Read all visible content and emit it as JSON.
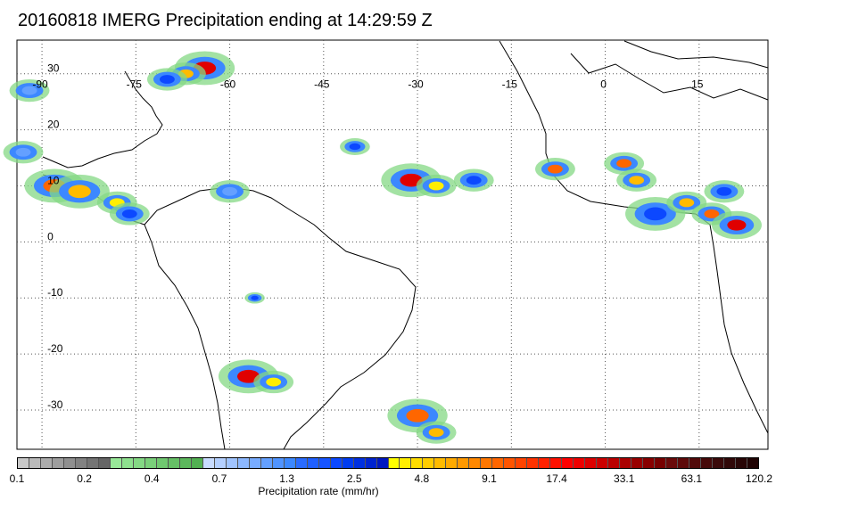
{
  "title": "20160818 IMERG Precipitation ending at 14:29:59 Z",
  "map": {
    "lon_labels": [
      "-90",
      "-75",
      "-60",
      "-45",
      "-30",
      "-15",
      "0",
      "15"
    ],
    "lon_values": [
      -90,
      -75,
      -60,
      -45,
      -30,
      -15,
      0,
      15
    ],
    "lat_labels": [
      "30",
      "20",
      "10",
      "0",
      "-10",
      "-20",
      "-30"
    ],
    "lat_values": [
      30,
      20,
      10,
      0,
      -10,
      -20,
      -30
    ],
    "lon_range": [
      -94,
      26
    ],
    "lat_range": [
      -37,
      36
    ],
    "grid": "dotted",
    "precip_cells": [
      {
        "lon": -64,
        "lat": 31,
        "value": 33.1,
        "radius": 3
      },
      {
        "lon": -67,
        "lat": 30,
        "value": 9.1,
        "radius": 2
      },
      {
        "lon": -70,
        "lat": 29,
        "value": 2.5,
        "radius": 2
      },
      {
        "lon": -88,
        "lat": 10,
        "value": 17.4,
        "radius": 3
      },
      {
        "lon": -84,
        "lat": 9,
        "value": 9.1,
        "radius": 3
      },
      {
        "lon": -78,
        "lat": 7,
        "value": 4.8,
        "radius": 2
      },
      {
        "lon": -76,
        "lat": 5,
        "value": 2.5,
        "radius": 2
      },
      {
        "lon": -60,
        "lat": 9,
        "value": 1.3,
        "radius": 2
      },
      {
        "lon": -40,
        "lat": 17,
        "value": 2.5,
        "radius": 1.5
      },
      {
        "lon": -31,
        "lat": 11,
        "value": 33.1,
        "radius": 3
      },
      {
        "lon": -27,
        "lat": 10,
        "value": 4.8,
        "radius": 2
      },
      {
        "lon": -21,
        "lat": 11,
        "value": 2.5,
        "radius": 2
      },
      {
        "lon": -8,
        "lat": 13,
        "value": 17.4,
        "radius": 2
      },
      {
        "lon": 3,
        "lat": 14,
        "value": 17.4,
        "radius": 2
      },
      {
        "lon": 5,
        "lat": 11,
        "value": 9.1,
        "radius": 2
      },
      {
        "lon": 8,
        "lat": 5,
        "value": 2.5,
        "radius": 3
      },
      {
        "lon": 13,
        "lat": 7,
        "value": 9.1,
        "radius": 2
      },
      {
        "lon": 17,
        "lat": 5,
        "value": 17.4,
        "radius": 2
      },
      {
        "lon": 21,
        "lat": 3,
        "value": 33.1,
        "radius": 2.5
      },
      {
        "lon": 19,
        "lat": 9,
        "value": 2.5,
        "radius": 2
      },
      {
        "lon": -57,
        "lat": -24,
        "value": 33.1,
        "radius": 3
      },
      {
        "lon": -53,
        "lat": -25,
        "value": 4.8,
        "radius": 2
      },
      {
        "lon": -30,
        "lat": -31,
        "value": 17.4,
        "radius": 3
      },
      {
        "lon": -27,
        "lat": -34,
        "value": 9.1,
        "radius": 2
      },
      {
        "lon": -56,
        "lat": -10,
        "value": 2.5,
        "radius": 1
      },
      {
        "lon": -92,
        "lat": 27,
        "value": 1.3,
        "radius": 2
      },
      {
        "lon": -93,
        "lat": 16,
        "value": 1.3,
        "radius": 2
      }
    ]
  },
  "colorbar": {
    "title": "Precipitation rate (mm/hr)",
    "tick_labels": [
      "0.1",
      "0.2",
      "0.4",
      "0.7",
      "1.3",
      "2.5",
      "4.8",
      "9.1",
      "17.4",
      "33.1",
      "63.1",
      "120.2"
    ],
    "colors": [
      "#c8c8c8",
      "#bababa",
      "#acacac",
      "#9e9e9e",
      "#909090",
      "#828282",
      "#747474",
      "#666666",
      "#98e898",
      "#8ee08e",
      "#84d884",
      "#7ad07a",
      "#70c870",
      "#66c066",
      "#5cb85c",
      "#52b052",
      "#c8dcff",
      "#b4d0ff",
      "#a0c4ff",
      "#8cb8ff",
      "#78acff",
      "#64a0ff",
      "#5094ff",
      "#3c88ff",
      "#2a6cff",
      "#2060ff",
      "#1654ff",
      "#0c48ff",
      "#003cf0",
      "#0030e0",
      "#0024d0",
      "#0018c0",
      "#ffff00",
      "#ffee00",
      "#ffdd00",
      "#ffcc00",
      "#ffbb00",
      "#ffaa00",
      "#ff9900",
      "#ff8800",
      "#ff7700",
      "#ff6600",
      "#ff5500",
      "#ff4400",
      "#ff3300",
      "#ff2200",
      "#ff1100",
      "#ff0000",
      "#ee0000",
      "#dd0000",
      "#cc0000",
      "#bb0000",
      "#aa0000",
      "#990000",
      "#880000",
      "#770000",
      "#6a0a0a",
      "#5e0a0a",
      "#520a0a",
      "#460a0a",
      "#3a0a0a",
      "#300808",
      "#280606",
      "#200404"
    ]
  }
}
